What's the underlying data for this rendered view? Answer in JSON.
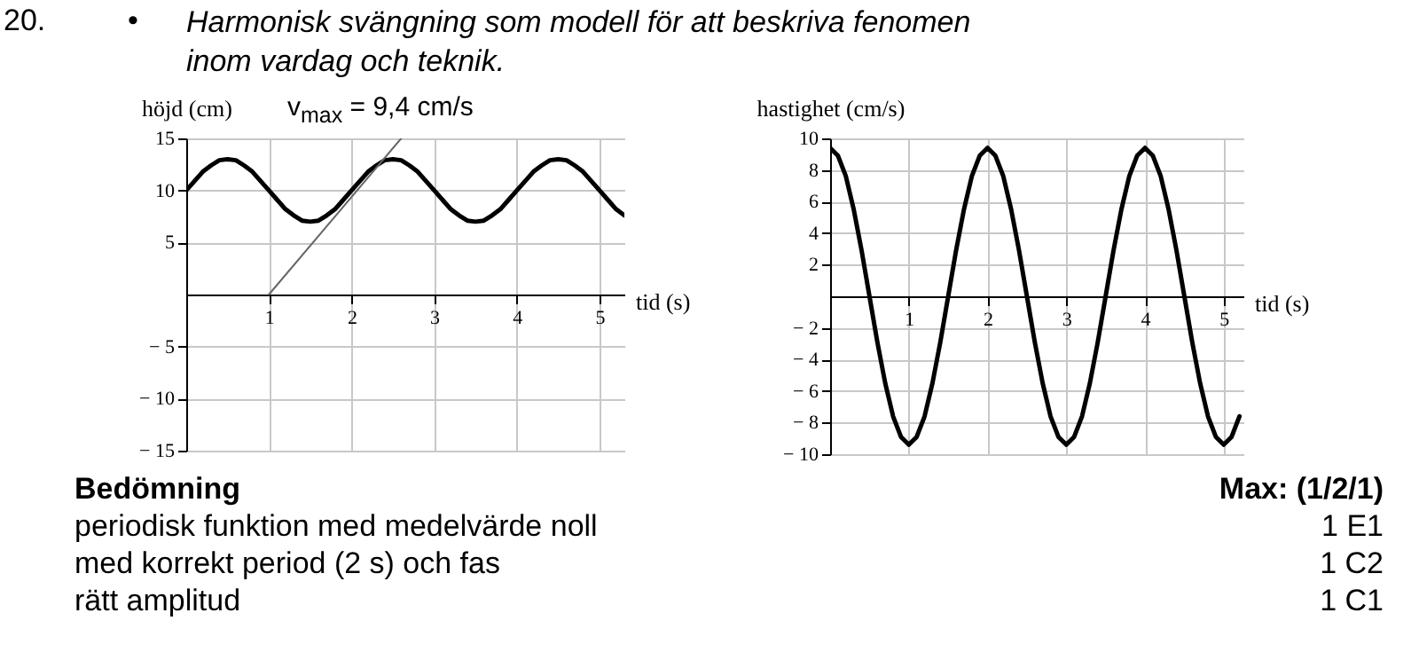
{
  "chart_data": [
    {
      "type": "other",
      "title": "Harmonisk svängning som modell för att beskriva fenomen inom vardag och teknik.",
      "annotations": [
        "20.",
        "•"
      ]
    },
    {
      "type": "line",
      "xlabel": "tid (s)",
      "ylabel": "höjd (cm)",
      "xlim": [
        0,
        5.3
      ],
      "ylim": [
        -15,
        15
      ],
      "xticks": [
        1,
        2,
        3,
        4,
        5
      ],
      "yticks": [
        {
          "value": -15,
          "label": "− 15"
        },
        {
          "value": -10,
          "label": "− 10"
        },
        {
          "value": -5,
          "label": "− 5"
        },
        5,
        10,
        15
      ],
      "grid": true,
      "annotations": [
        "v$_{max}$ = 9,4 cm/s"
      ],
      "x": [
        0,
        0.1,
        0.2,
        0.3,
        0.4,
        0.5,
        0.6,
        0.7,
        0.8,
        0.9,
        1,
        1.1,
        1.2,
        1.3,
        1.4,
        1.5,
        1.6,
        1.7,
        1.8,
        1.9,
        2,
        2.1,
        2.2,
        2.3,
        2.4,
        2.5,
        2.6,
        2.7,
        2.8,
        2.9,
        3,
        3.1,
        3.2,
        3.3,
        3.4,
        3.5,
        3.6,
        3.7,
        3.8,
        3.9,
        4,
        4.1,
        4.2,
        4.3,
        4.4,
        4.5,
        4.6,
        4.7,
        4.8,
        4.9,
        5,
        5.1,
        5.2,
        5.3
      ],
      "series": [
        {
          "color": "#000000",
          "values": [
            10,
            10.9,
            11.8,
            12.4,
            12.9,
            13,
            12.9,
            12.4,
            11.8,
            10.9,
            10,
            9.1,
            8.2,
            7.6,
            7.1,
            7,
            7.1,
            7.6,
            8.2,
            9.1,
            10,
            10.9,
            11.8,
            12.4,
            12.9,
            13,
            12.9,
            12.4,
            11.8,
            10.9,
            10,
            9.1,
            8.2,
            7.6,
            7.1,
            7,
            7.1,
            7.6,
            8.2,
            9.1,
            10,
            10.9,
            11.8,
            12.4,
            12.9,
            13,
            12.9,
            12.4,
            11.8,
            10.9,
            10,
            9.1,
            8.2,
            7.6
          ]
        },
        {
          "type": "line",
          "color": "#666666",
          "x": [
            1,
            2.6
          ],
          "values": [
            0,
            15
          ]
        }
      ]
    },
    {
      "type": "line",
      "xlabel": "tid (s)",
      "ylabel": "hastighet (cm/s)",
      "xlim": [
        0,
        5.25
      ],
      "ylim": [
        -10,
        10
      ],
      "xticks": [
        1,
        2,
        3,
        4,
        5
      ],
      "yticks": [
        {
          "value": -10,
          "label": "− 10"
        },
        {
          "value": -8,
          "label": "− 8"
        },
        {
          "value": -6,
          "label": "− 6"
        },
        {
          "value": -4,
          "label": "− 4"
        },
        {
          "value": -2,
          "label": "− 2"
        },
        2,
        4,
        6,
        8,
        10
      ],
      "grid": true,
      "x": [
        0,
        0.1,
        0.2,
        0.3,
        0.4,
        0.5,
        0.6,
        0.7,
        0.8,
        0.9,
        1,
        1.1,
        1.2,
        1.3,
        1.4,
        1.5,
        1.6,
        1.7,
        1.8,
        1.9,
        2,
        2.1,
        2.2,
        2.3,
        2.4,
        2.5,
        2.6,
        2.7,
        2.8,
        2.9,
        3,
        3.1,
        3.2,
        3.3,
        3.4,
        3.5,
        3.6,
        3.7,
        3.8,
        3.9,
        4,
        4.1,
        4.2,
        4.3,
        4.4,
        4.5,
        4.6,
        4.7,
        4.8,
        4.9,
        5,
        5.1,
        5.2
      ],
      "series": [
        {
          "color": "#000000",
          "values": [
            9.4,
            8.9,
            7.6,
            5.5,
            2.9,
            0,
            -2.9,
            -5.5,
            -7.6,
            -8.9,
            -9.4,
            -8.9,
            -7.6,
            -5.5,
            -2.9,
            0,
            2.9,
            5.5,
            7.6,
            8.9,
            9.4,
            8.9,
            7.6,
            5.5,
            2.9,
            0,
            -2.9,
            -5.5,
            -7.6,
            -8.9,
            -9.4,
            -8.9,
            -7.6,
            -5.5,
            -2.9,
            0,
            2.9,
            5.5,
            7.6,
            8.9,
            9.4,
            8.9,
            7.6,
            5.5,
            2.9,
            0,
            -2.9,
            -5.5,
            -7.6,
            -8.9,
            -9.4,
            -8.9,
            -7.6
          ]
        }
      ]
    },
    {
      "type": "other",
      "annotations": [
        "Bedömning",
        "Max: (1/2/1)",
        "periodisk funktion med medelvärde noll",
        "1 E1",
        "med korrekt period (2 s) och fas",
        "1 C2",
        "rätt amplitud",
        "1 C1"
      ]
    }
  ]
}
